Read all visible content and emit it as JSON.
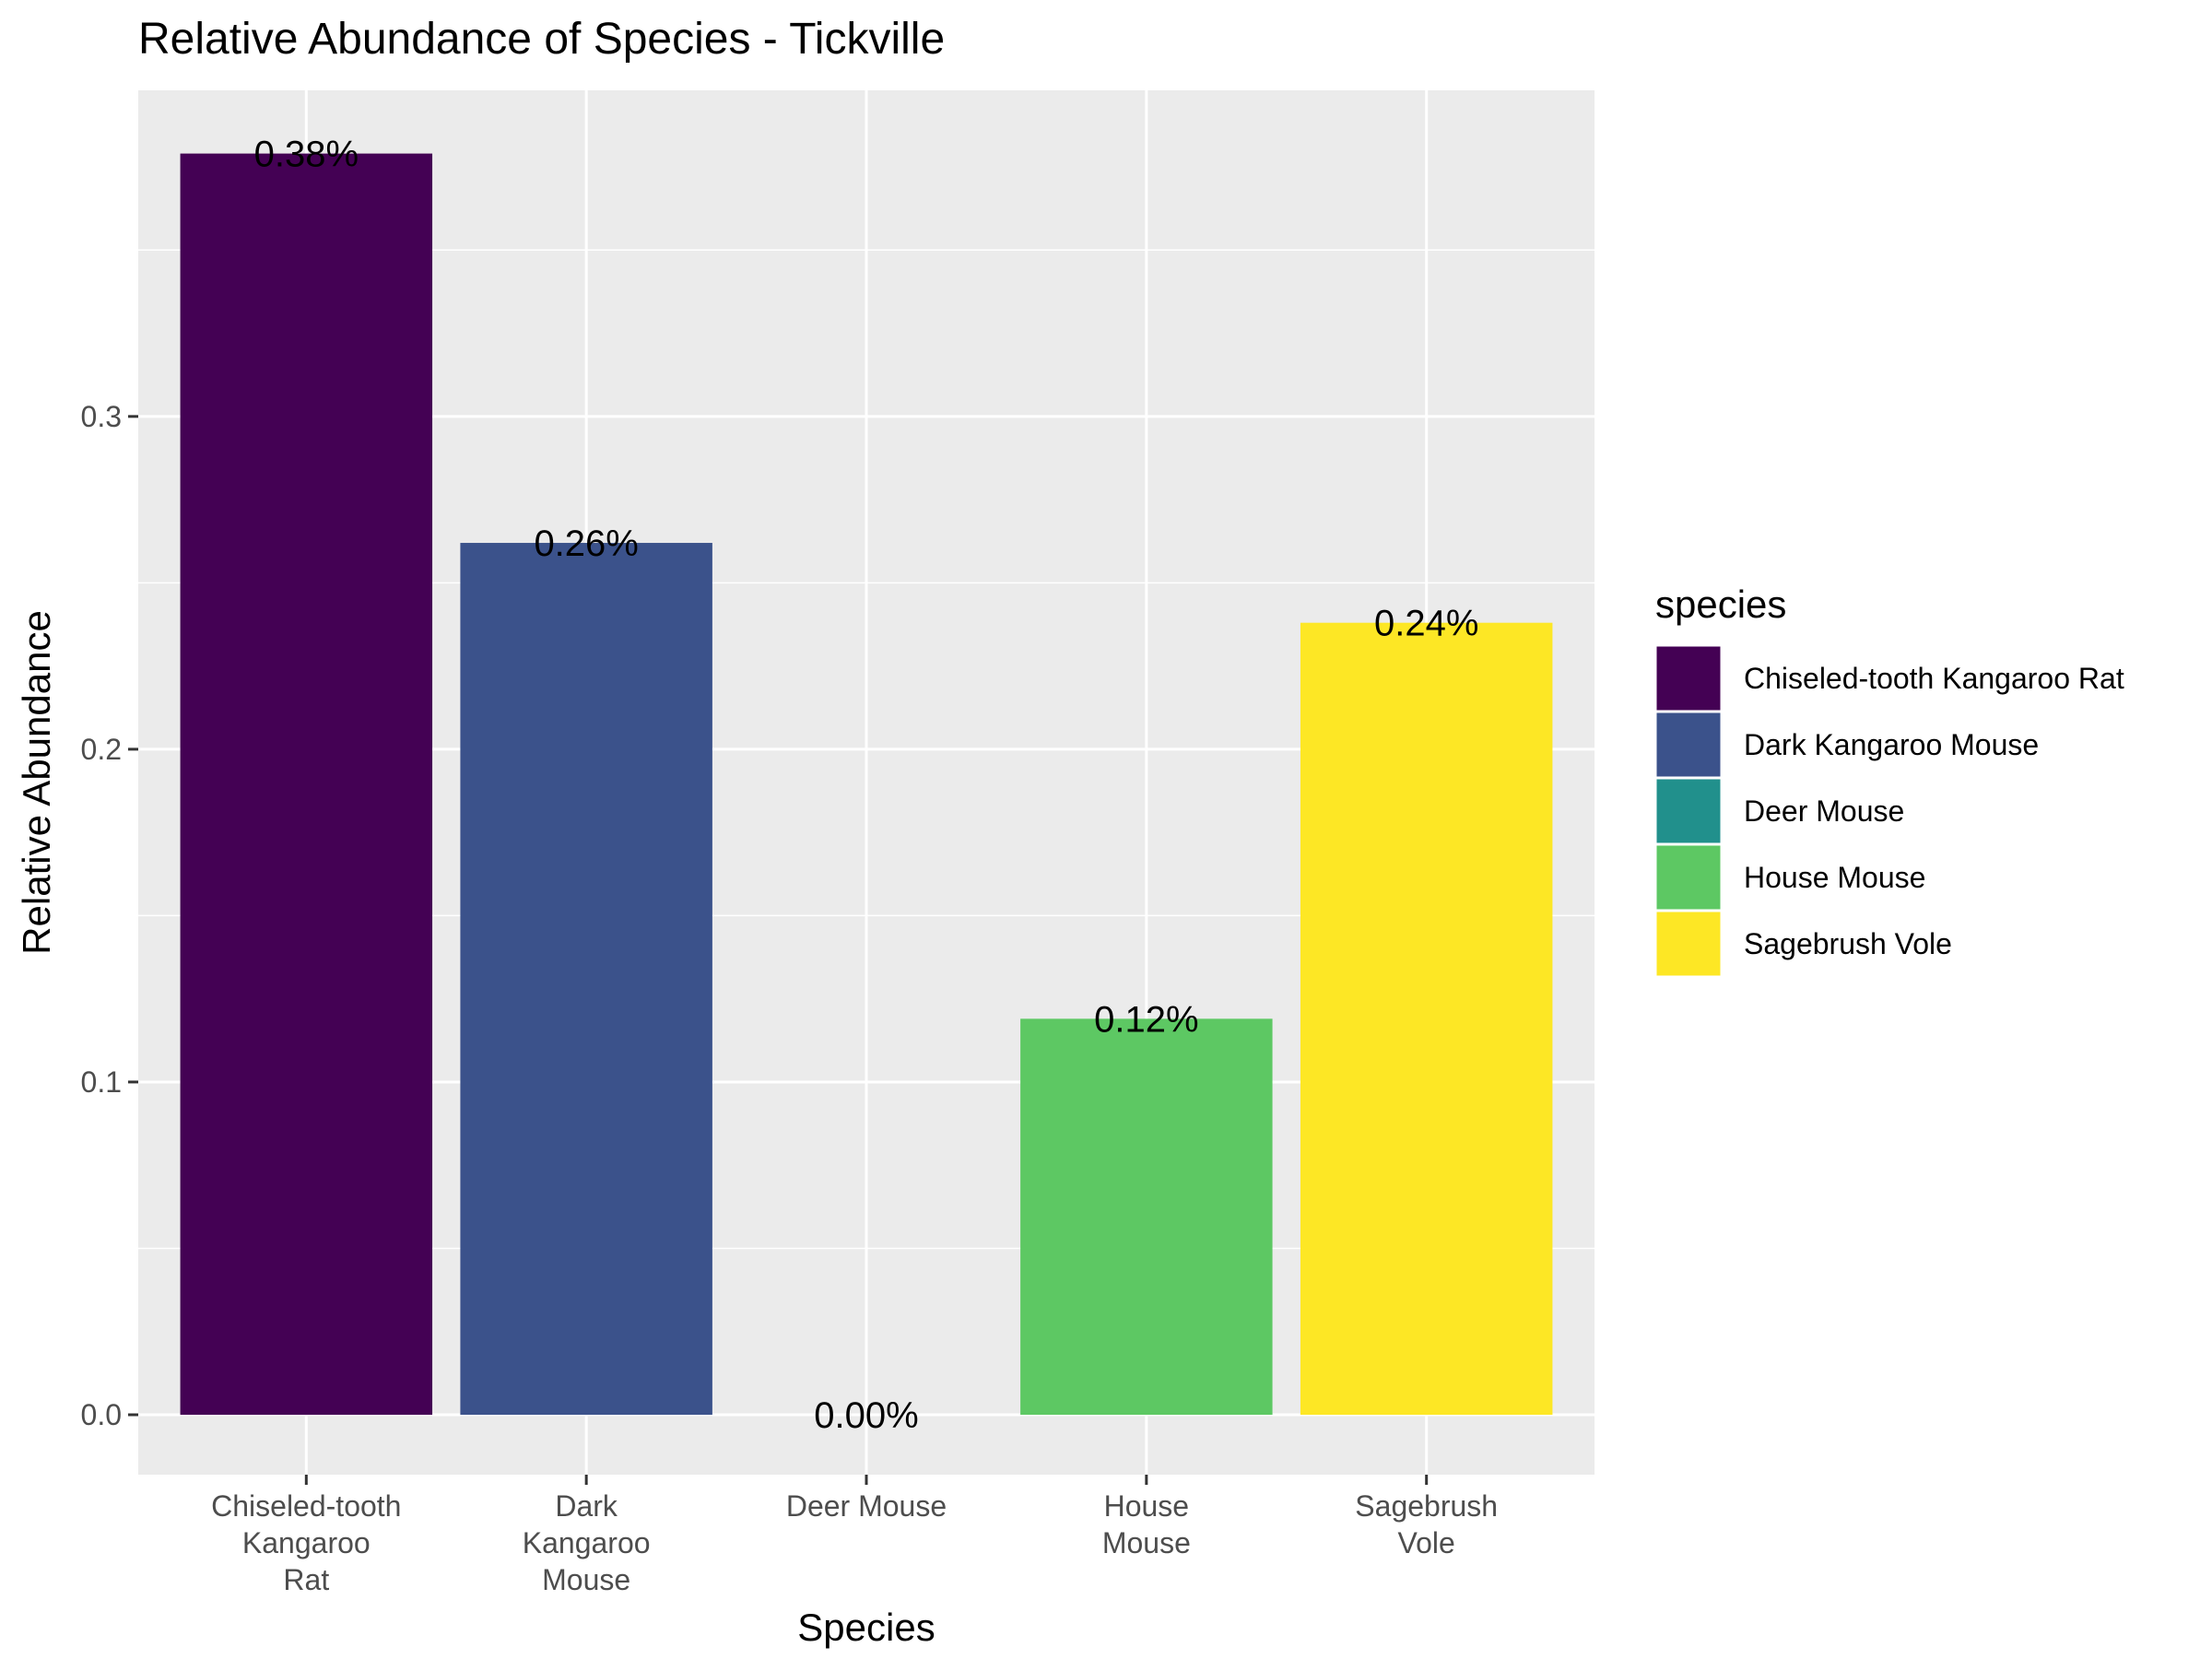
{
  "chart_data": {
    "type": "bar",
    "title": "Relative Abundance of Species - Tickville",
    "xlabel": "Species",
    "ylabel": "Relative Abundance",
    "categories": [
      "Chiseled-tooth Kangaroo Rat",
      "Dark Kangaroo Mouse",
      "Deer Mouse",
      "House Mouse",
      "Sagebrush Vole"
    ],
    "tick_labels": [
      [
        "Chiseled-tooth",
        "Kangaroo",
        "Rat"
      ],
      [
        "Dark",
        "Kangaroo",
        "Mouse"
      ],
      [
        "Deer Mouse"
      ],
      [
        "House",
        "Mouse"
      ],
      [
        "Sagebrush",
        "Vole"
      ]
    ],
    "values": [
      0.379,
      0.262,
      0.0,
      0.119,
      0.238
    ],
    "data_labels": [
      "0.38%",
      "0.26%",
      "0.00%",
      "0.12%",
      "0.24%"
    ],
    "colors": [
      "#440154",
      "#3B528B",
      "#21908C",
      "#5DC863",
      "#FDE725"
    ],
    "ylim": [
      -0.018,
      0.398
    ],
    "yticks": [
      0.0,
      0.1,
      0.2,
      0.3
    ],
    "ytick_labels": [
      "0.0",
      "0.1",
      "0.2",
      "0.3"
    ],
    "grid": true,
    "legend": {
      "title": "species",
      "position": "right",
      "entries": [
        "Chiseled-tooth Kangaroo Rat",
        "Dark Kangaroo Mouse",
        "Deer Mouse",
        "House Mouse",
        "Sagebrush Vole"
      ]
    },
    "panel_background": "#EBEBEB",
    "grid_color": "#FFFFFF"
  }
}
